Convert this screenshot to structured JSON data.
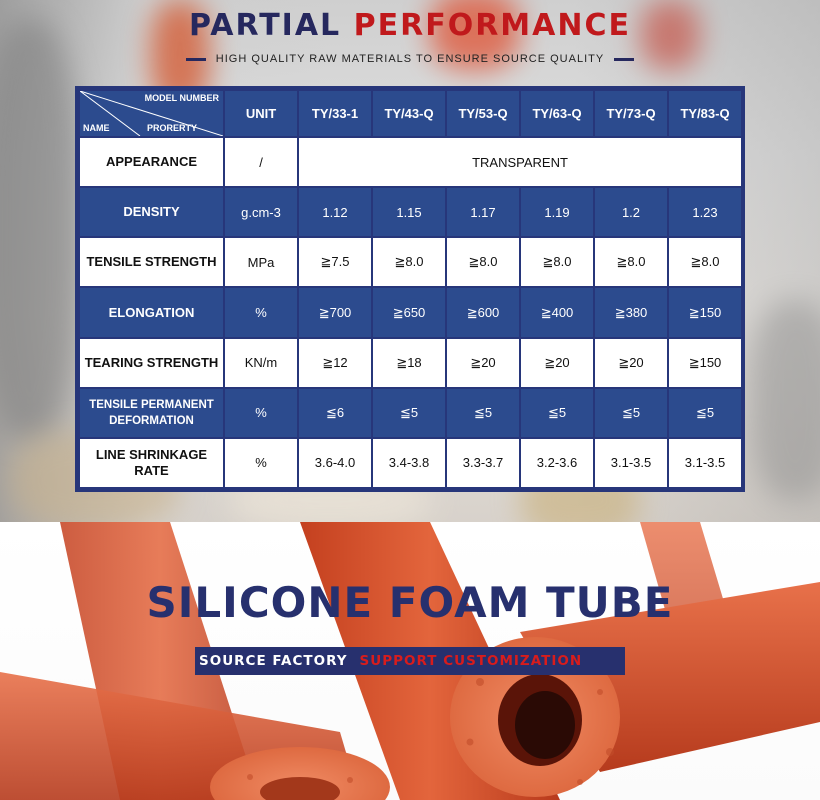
{
  "header": {
    "title_part1": "PARTIAL",
    "title_part2": "PERFORMANCE",
    "subtitle": "HIGH QUALITY RAW MATERIALS TO ENSURE SOURCE QUALITY"
  },
  "table": {
    "corner": {
      "model_number": "MODEL NUMBER",
      "name": "NAME",
      "property": "PRORERTY"
    },
    "unit_header": "UNIT",
    "models": [
      "TY/33-1",
      "TY/43-Q",
      "TY/53-Q",
      "TY/63-Q",
      "TY/73-Q",
      "TY/83-Q"
    ],
    "appearance": {
      "name": "APPEARANCE",
      "unit": "/",
      "value": "TRANSPARENT"
    },
    "rows": [
      {
        "name": "DENSITY",
        "unit": "g.cm-3",
        "values": [
          "1.12",
          "1.15",
          "1.17",
          "1.19",
          "1.2",
          "1.23"
        ]
      },
      {
        "name": "TENSILE STRENGTH",
        "unit": "MPa",
        "values": [
          "≧7.5",
          "≧8.0",
          "≧8.0",
          "≧8.0",
          "≧8.0",
          "≧8.0"
        ]
      },
      {
        "name": "ELONGATION",
        "unit": "%",
        "values": [
          "≧700",
          "≧650",
          "≧600",
          "≧400",
          "≧380",
          "≧150"
        ]
      },
      {
        "name": "TEARING STRENGTH",
        "unit": "KN/m",
        "values": [
          "≧12",
          "≧18",
          "≧20",
          "≧20",
          "≧20",
          "≧150"
        ]
      },
      {
        "name_line1": "TENSILE PERMANENT",
        "name_line2": "DEFORMATION",
        "unit": "%",
        "values": [
          "≦6",
          "≦5",
          "≦5",
          "≦5",
          "≦5",
          "≦5"
        ]
      },
      {
        "name_line1": "LINE SHRINKAGE",
        "name_line2": "RATE",
        "unit": "%",
        "values": [
          "3.6-4.0",
          "3.4-3.8",
          "3.3-3.7",
          "3.2-3.6",
          "3.1-3.5",
          "3.1-3.5"
        ]
      }
    ]
  },
  "product": {
    "title": "SILICONE FOAM TUBE",
    "tag_left": "SOURCE FACTORY",
    "tag_right": "SUPPORT CUSTOMIZATION"
  },
  "colors": {
    "navy": "#26285e",
    "red": "#c0191c",
    "table_blue": "#2c4b8e",
    "tube_orange": "#d9552f"
  }
}
